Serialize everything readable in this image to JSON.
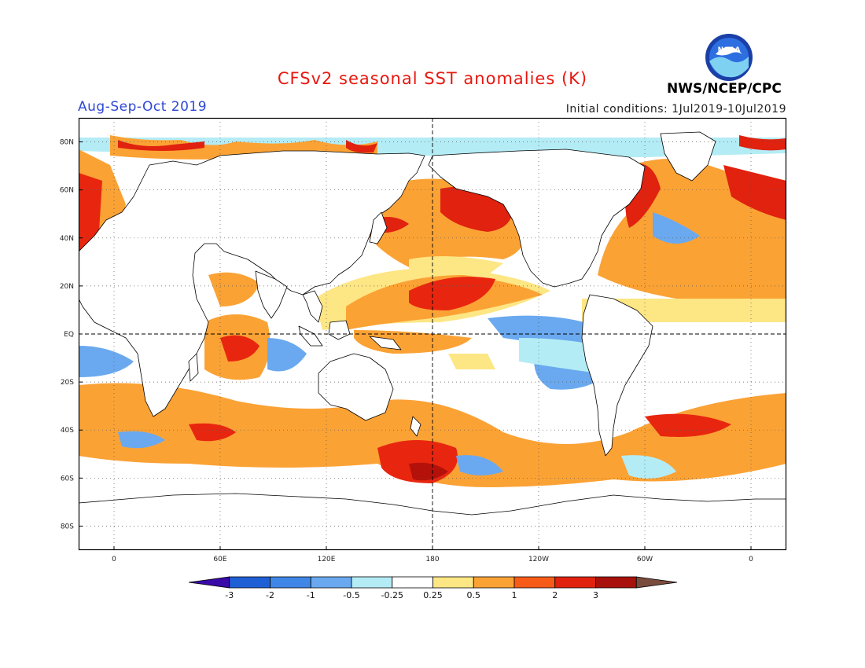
{
  "title": "CFSv2 seasonal SST anomalies (K)",
  "period": "Aug-Sep-Oct 2019",
  "initial_conditions": "Initial conditions: 1Jul2019-10Jul2019",
  "agency": "NWS/NCEP/CPC",
  "logo_text": "NOAA",
  "map": {
    "projection": "equirectangular",
    "lon_range": [
      -20,
      380
    ],
    "lat_range": [
      -90,
      90
    ],
    "grid": "dotted",
    "lat_ticks": [
      {
        "lat": 80,
        "label": "80N"
      },
      {
        "lat": 60,
        "label": "60N"
      },
      {
        "lat": 40,
        "label": "40N"
      },
      {
        "lat": 20,
        "label": "20N"
      },
      {
        "lat": 0,
        "label": "EQ"
      },
      {
        "lat": -20,
        "label": "20S"
      },
      {
        "lat": -40,
        "label": "40S"
      },
      {
        "lat": -60,
        "label": "60S"
      },
      {
        "lat": -80,
        "label": "80S"
      }
    ],
    "lon_ticks": [
      {
        "lon": 0,
        "label": "0"
      },
      {
        "lon": 60,
        "label": "60E"
      },
      {
        "lon": 120,
        "label": "120E"
      },
      {
        "lon": 180,
        "label": "180"
      },
      {
        "lon": 240,
        "label": "120W"
      },
      {
        "lon": 300,
        "label": "60W"
      },
      {
        "lon": 360,
        "label": "0"
      }
    ]
  },
  "colorbar": {
    "labels": [
      "-3",
      "-2",
      "-1",
      "-0.5",
      "-0.25",
      "0.25",
      "0.5",
      "1",
      "2",
      "3"
    ],
    "colors": [
      "#3a0aa8",
      "#1f5fd6",
      "#3f86e6",
      "#6aa9ef",
      "#b4ecf6",
      "#ffffff",
      "#fde684",
      "#fba235",
      "#f75b18",
      "#e0220f",
      "#a8110b",
      "#7a4c3e"
    ]
  },
  "palette": {
    "land": "#ffffff",
    "coast": "#000000",
    "warm1": "#fde684",
    "warm2": "#fa7a1c",
    "warm3": "#e8260f",
    "warm4": "#b5110b",
    "cool1": "#b4ecf6",
    "cool2": "#6aa9ef",
    "cool3": "#3f86e6",
    "cool4": "#3a0aa8"
  }
}
